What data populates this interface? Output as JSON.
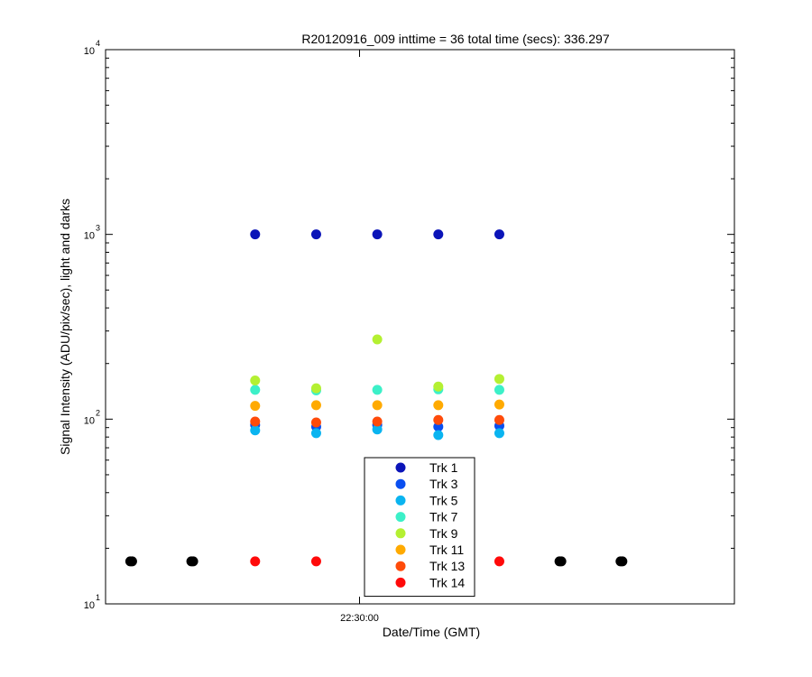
{
  "chart_data": {
    "type": "scatter",
    "title": "R20120916_009 inttime = 36 total time (secs): 336.297",
    "xlabel": "Date/Time (GMT)",
    "ylabel": "Signal Intensity (ADU/pix/sec), light and darks",
    "y_scale": "log",
    "ylim": [
      10,
      10000
    ],
    "y_ticks": [
      {
        "value": 10,
        "base": "10",
        "exp": "1"
      },
      {
        "value": 100,
        "base": "10",
        "exp": "2"
      },
      {
        "value": 1000,
        "base": "10",
        "exp": "3"
      },
      {
        "value": 10000,
        "base": "10",
        "exp": "4"
      }
    ],
    "x_ticks": [
      "22:30:00"
    ],
    "x_tick_positions": [
      4.16
    ],
    "xlim": [
      0,
      10.3
    ],
    "grid": false,
    "legend_placement": "bottom-center",
    "series": [
      {
        "name": "Trk 1",
        "color": "#0b14b8",
        "x": [
          2.45,
          3.45,
          4.45,
          5.45,
          6.45
        ],
        "y": [
          1000,
          1000,
          1000,
          1000,
          1000
        ]
      },
      {
        "name": "Trk 3",
        "color": "#0a4ff0",
        "x": [
          2.45,
          3.45,
          4.45,
          5.45,
          6.45
        ],
        "y": [
          93,
          91,
          93,
          91,
          92
        ]
      },
      {
        "name": "Trk 5",
        "color": "#0ab4f0",
        "x": [
          2.45,
          3.45,
          4.45,
          5.45,
          6.45
        ],
        "y": [
          87,
          84,
          88,
          82,
          84
        ]
      },
      {
        "name": "Trk 7",
        "color": "#3cf0c8",
        "x": [
          2.45,
          3.45,
          4.45,
          5.45,
          6.45
        ],
        "y": [
          144,
          143,
          144,
          145,
          144
        ]
      },
      {
        "name": "Trk 9",
        "color": "#b4f032",
        "x": [
          2.45,
          3.45,
          4.45,
          5.45,
          6.45
        ],
        "y": [
          162,
          147,
          270,
          150,
          165
        ]
      },
      {
        "name": "Trk 11",
        "color": "#ffaa00",
        "x": [
          2.45,
          3.45,
          4.45,
          5.45,
          6.45
        ],
        "y": [
          118,
          119,
          119,
          119,
          120
        ]
      },
      {
        "name": "Trk 13",
        "color": "#ff4b0a",
        "x": [
          2.45,
          3.45,
          4.45,
          5.45,
          6.45
        ],
        "y": [
          97,
          96,
          97,
          99,
          99
        ]
      },
      {
        "name": "Trk 14",
        "color": "#ff0a0a",
        "x": [
          2.45,
          3.45,
          6.45
        ],
        "y": [
          17,
          17,
          17
        ]
      }
    ],
    "dark_points": {
      "color": "#000000",
      "x": [
        0.42,
        1.42,
        7.45,
        8.45
      ],
      "y": [
        17,
        17,
        17,
        17
      ]
    }
  }
}
